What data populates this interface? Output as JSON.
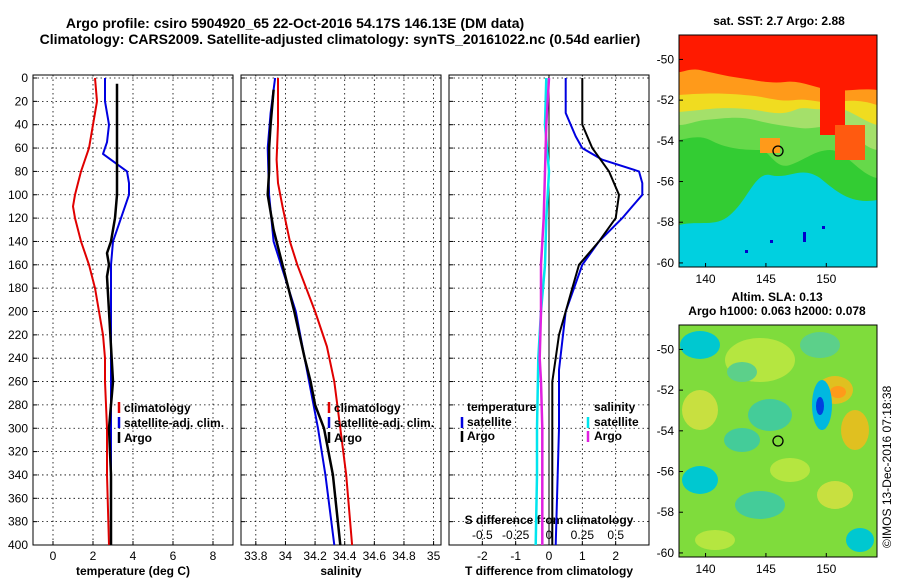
{
  "header": {
    "line1": "Argo profile: csiro 5904920_65 22-Oct-2016 54.17S 146.13E (DM data)",
    "line2": "Climatology: CARS2009. Satellite-adjusted climatology: synTS_20161022.nc (0.54d earlier)"
  },
  "colors": {
    "climatology": "#e00000",
    "satellite": "#0000e0",
    "argo": "#000000",
    "sat_salinity": "#00e5ee",
    "argo_salinity": "#e020e0"
  },
  "chart_data": [
    {
      "type": "line",
      "title": "",
      "xlabel": "temperature (deg C)",
      "ylabel": "",
      "xlim": [
        -1,
        9
      ],
      "ylim": [
        400,
        0
      ],
      "xticks": [
        "0",
        "2",
        "4",
        "6",
        "8"
      ],
      "yticks": [
        "0",
        "20",
        "40",
        "60",
        "80",
        "100",
        "120",
        "140",
        "160",
        "180",
        "200",
        "220",
        "240",
        "260",
        "280",
        "300",
        "320",
        "340",
        "360",
        "380",
        "400"
      ],
      "legend": [
        "climatology",
        "satellite-adj. clim.",
        "Argo"
      ],
      "legend_position": "lower-right",
      "series": [
        {
          "name": "climatology",
          "depth": [
            0,
            20,
            40,
            60,
            80,
            100,
            110,
            120,
            140,
            160,
            180,
            200,
            220,
            240,
            260,
            300,
            340,
            400
          ],
          "values": [
            2.1,
            2.2,
            2.0,
            1.8,
            1.4,
            1.1,
            1.0,
            1.1,
            1.4,
            1.8,
            2.1,
            2.3,
            2.5,
            2.6,
            2.6,
            2.7,
            2.7,
            2.8
          ]
        },
        {
          "name": "satellite-adj. clim.",
          "depth": [
            0,
            20,
            40,
            55,
            65,
            80,
            90,
            100,
            110,
            120,
            130,
            140,
            160,
            200,
            260,
            300,
            340,
            400
          ],
          "values": [
            2.6,
            2.6,
            2.8,
            2.7,
            2.5,
            3.7,
            3.8,
            3.8,
            3.6,
            3.4,
            3.2,
            3.0,
            2.9,
            2.9,
            2.9,
            2.9,
            2.9,
            2.9
          ]
        },
        {
          "name": "Argo",
          "depth": [
            5,
            40,
            80,
            100,
            120,
            140,
            150,
            160,
            170,
            200,
            230,
            260,
            280,
            300,
            340,
            400
          ],
          "values": [
            3.2,
            3.2,
            3.2,
            3.2,
            3.1,
            2.9,
            2.7,
            2.8,
            2.7,
            2.8,
            2.9,
            3.0,
            2.9,
            2.8,
            2.9,
            2.9
          ]
        }
      ]
    },
    {
      "type": "line",
      "xlabel": "salinity",
      "xlim": [
        33.7,
        35.05
      ],
      "ylim": [
        400,
        0
      ],
      "xticks": [
        "33.8",
        "34",
        "34.2",
        "34.4",
        "34.6",
        "34.8",
        "35"
      ],
      "legend": [
        "climatology",
        "satellite-adj. clim.",
        "Argo"
      ],
      "legend_position": "lower-right",
      "series": [
        {
          "name": "climatology",
          "depth": [
            0,
            40,
            70,
            90,
            110,
            140,
            160,
            200,
            230,
            260,
            300,
            340,
            400
          ],
          "values": [
            33.95,
            33.95,
            33.94,
            33.95,
            33.98,
            34.03,
            34.08,
            34.2,
            34.28,
            34.33,
            34.37,
            34.41,
            34.45
          ]
        },
        {
          "name": "satellite-adj. clim.",
          "depth": [
            0,
            30,
            60,
            100,
            140,
            160,
            200,
            260,
            300,
            340,
            400
          ],
          "values": [
            33.93,
            33.9,
            33.88,
            33.89,
            33.92,
            33.97,
            34.07,
            34.16,
            34.22,
            34.27,
            34.33
          ]
        },
        {
          "name": "Argo",
          "depth": [
            10,
            40,
            60,
            80,
            100,
            130,
            160,
            200,
            240,
            260,
            280,
            300,
            340,
            400
          ],
          "values": [
            33.92,
            33.9,
            33.89,
            33.89,
            33.88,
            33.92,
            33.98,
            34.06,
            34.13,
            34.17,
            34.2,
            34.26,
            34.32,
            34.37
          ]
        }
      ]
    },
    {
      "type": "line",
      "xlabel": "T difference from climatology",
      "xlabel_top": "S difference from climatology",
      "xlim": [
        -3,
        3
      ],
      "ylim": [
        400,
        0
      ],
      "xticks": [
        "-2",
        "-1",
        "0",
        "1",
        "2"
      ],
      "xticks_top": [
        "-0.5",
        "-0.25",
        "0",
        "0.25",
        "0.5"
      ],
      "legend_left_title": "temperature",
      "legend_right_title": "salinity",
      "legend_left": [
        "satellite",
        "Argo"
      ],
      "legend_right": [
        "satellite",
        "Argo"
      ],
      "series": [
        {
          "name": "T satellite",
          "depth": [
            0,
            30,
            50,
            60,
            70,
            80,
            90,
            100,
            110,
            120,
            140,
            160,
            200,
            250,
            300,
            400
          ],
          "values": [
            0.5,
            0.5,
            0.8,
            1.0,
            1.6,
            2.7,
            2.8,
            2.8,
            2.5,
            2.2,
            1.5,
            1.0,
            0.5,
            0.3,
            0.3,
            0.2
          ]
        },
        {
          "name": "T Argo",
          "depth": [
            0,
            40,
            60,
            80,
            100,
            120,
            140,
            160,
            180,
            200,
            220,
            240,
            260,
            300,
            340,
            400
          ],
          "values": [
            1.0,
            1.0,
            1.3,
            1.8,
            2.1,
            2.0,
            1.5,
            0.9,
            0.7,
            0.5,
            0.3,
            0.2,
            0.1,
            0.1,
            0.1,
            0.1
          ]
        },
        {
          "name": "S satellite",
          "depth": [
            0,
            40,
            80,
            100,
            120,
            160,
            200,
            240,
            300,
            340,
            400
          ],
          "values": [
            -0.02,
            -0.03,
            0.0,
            -0.01,
            -0.02,
            -0.03,
            -0.06,
            -0.08,
            -0.09,
            -0.09,
            -0.1
          ]
        },
        {
          "name": "S Argo",
          "depth": [
            0,
            40,
            80,
            120,
            160,
            200,
            240,
            260,
            300,
            340,
            400
          ],
          "values": [
            0.0,
            -0.02,
            -0.03,
            -0.04,
            -0.06,
            -0.06,
            -0.07,
            -0.06,
            -0.05,
            -0.05,
            -0.05
          ]
        }
      ]
    },
    {
      "type": "heatmap",
      "title": "sat. SST: 2.7 Argo: 2.88",
      "xticks": [
        "140",
        "145",
        "150"
      ],
      "yticks": [
        "-50",
        "-52",
        "-54",
        "-56",
        "-58",
        "-60"
      ],
      "marker": {
        "lon": 146.13,
        "lat": -54.17
      }
    },
    {
      "type": "heatmap",
      "title_line1": "Altim. SLA: 0.13",
      "title_line2": "Argo h1000: 0.063 h2000: 0.078",
      "xticks": [
        "140",
        "145",
        "150"
      ],
      "yticks": [
        "-50",
        "-52",
        "-54",
        "-56",
        "-58",
        "-60"
      ],
      "marker": {
        "lon": 146.13,
        "lat": -54.17
      }
    }
  ],
  "legend_labels": {
    "climatology": "climatology",
    "satellite_adj": "satellite-adj. clim.",
    "argo": "Argo",
    "satellite": "satellite"
  },
  "credit": "©IMOS 13-Dec-2016 07:18:38"
}
